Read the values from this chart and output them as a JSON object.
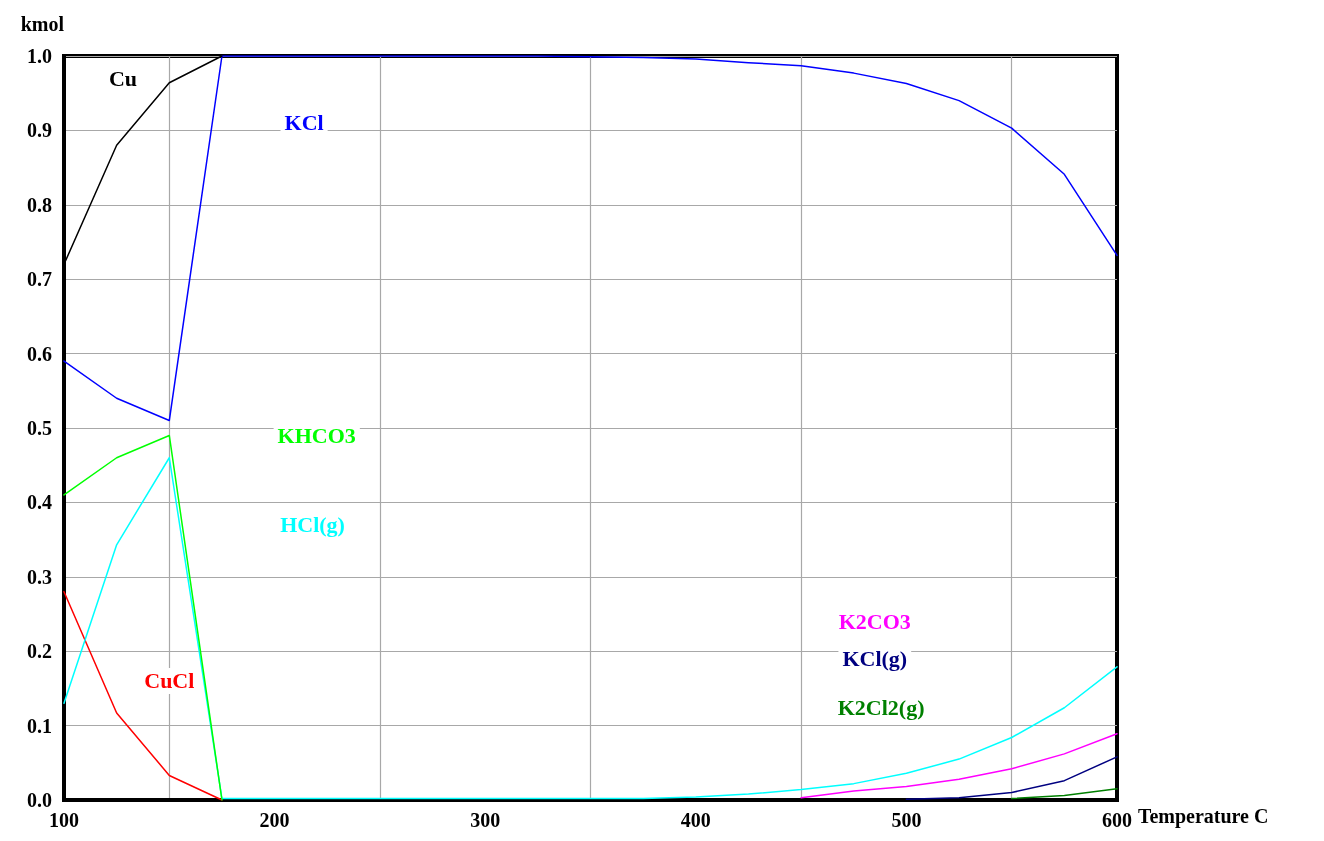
{
  "chart_data": {
    "type": "line",
    "xlabel": "Temperature C",
    "ylabel": "kmol",
    "x": [
      100,
      125,
      150,
      175,
      200,
      225,
      250,
      275,
      300,
      325,
      350,
      375,
      400,
      425,
      450,
      475,
      500,
      525,
      550,
      575,
      600
    ],
    "series": [
      {
        "name": "Cu",
        "color": "#000000",
        "values": [
          0.72,
          0.88,
          0.964,
          1,
          null,
          null,
          null,
          null,
          null,
          null,
          null,
          null,
          null,
          null,
          null,
          null,
          null,
          null,
          null,
          null,
          null
        ]
      },
      {
        "name": "KCl",
        "color": "#0000ff",
        "values": [
          0.59,
          0.54,
          0.51,
          1,
          1,
          1,
          1,
          1,
          1,
          1,
          0.999,
          0.998,
          0.996,
          0.991,
          0.987,
          0.977,
          0.963,
          0.94,
          0.903,
          0.841,
          0.732
        ]
      },
      {
        "name": "KHCO3",
        "color": "#00ff00",
        "values": [
          0.41,
          0.46,
          0.49,
          0,
          null,
          null,
          null,
          null,
          null,
          null,
          null,
          null,
          null,
          null,
          null,
          null,
          null,
          null,
          null,
          null,
          null
        ]
      },
      {
        "name": "HCl(g)",
        "color": "#00ffff",
        "values": [
          0.13,
          0.343,
          0.46,
          0.002,
          0.002,
          0.002,
          0.002,
          0.002,
          0.002,
          0.002,
          0.002,
          0.002,
          0.004,
          0.008,
          0.014,
          0.022,
          0.036,
          0.055,
          0.084,
          0.124,
          0.179
        ]
      },
      {
        "name": "CuCl",
        "color": "#ff0000",
        "values": [
          0.28,
          0.117,
          0.033,
          0,
          null,
          null,
          null,
          null,
          null,
          null,
          null,
          null,
          null,
          null,
          null,
          null,
          null,
          null,
          null,
          null,
          null
        ]
      },
      {
        "name": "K2CO3",
        "color": "#ff00ff",
        "values": [
          null,
          null,
          null,
          null,
          null,
          null,
          null,
          null,
          null,
          null,
          null,
          null,
          null,
          null,
          0.003,
          0.012,
          0.018,
          0.028,
          0.042,
          0.062,
          0.089
        ]
      },
      {
        "name": "KCl(g)",
        "color": "#000080",
        "values": [
          null,
          null,
          null,
          null,
          null,
          null,
          null,
          null,
          null,
          null,
          null,
          null,
          null,
          null,
          null,
          null,
          0.001,
          0.003,
          0.01,
          0.026,
          0.058
        ]
      },
      {
        "name": "K2Cl2(g)",
        "color": "#008000",
        "values": [
          null,
          null,
          null,
          null,
          null,
          null,
          null,
          null,
          null,
          null,
          null,
          null,
          null,
          null,
          null,
          null,
          null,
          null,
          0.002,
          0.006,
          0.015
        ]
      }
    ],
    "xlim": [
      100,
      600
    ],
    "xticks": [
      100,
      200,
      300,
      400,
      500,
      600
    ],
    "ylim": [
      0,
      1
    ],
    "yticks": [
      {
        "value": 0,
        "label": "0.0"
      },
      {
        "value": 0.1,
        "label": "0.1"
      },
      {
        "value": 0.2,
        "label": "0.2"
      },
      {
        "value": 0.3,
        "label": "0.3"
      },
      {
        "value": 0.4,
        "label": "0.4"
      },
      {
        "value": 0.5,
        "label": "0.5"
      },
      {
        "value": 0.6,
        "label": "0.6"
      },
      {
        "value": 0.7,
        "label": "0.7"
      },
      {
        "value": 0.8,
        "label": "0.8"
      },
      {
        "value": 0.9,
        "label": "0.9"
      },
      {
        "value": 1,
        "label": "1.0"
      }
    ],
    "grid": true,
    "marker": "none",
    "line_style": "solid"
  }
}
